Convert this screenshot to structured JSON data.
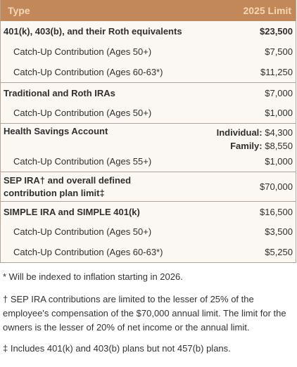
{
  "header": {
    "type_label": "Type",
    "limit_label": "2025 Limit"
  },
  "rows": {
    "r401k": {
      "label": "401(k), 403(b), and their Roth equivalents",
      "value": "$23,500"
    },
    "r401k_catchup50": {
      "label": "Catch-Up Contribution (Ages 50+)",
      "value": "$7,500"
    },
    "r401k_catchup60": {
      "label": "Catch-Up Contribution (Ages 60-63*)",
      "value": "$11,250"
    },
    "ira": {
      "label": "Traditional and Roth IRAs",
      "value": "$7,000"
    },
    "ira_catchup50": {
      "label": "Catch-Up Contribution (Ages 50+)",
      "value": "$1,000"
    },
    "hsa": {
      "label": "Health Savings Account",
      "individual_label": "Individual:",
      "individual_value": "$4,300",
      "family_label": "Family:",
      "family_value": "$8,550"
    },
    "hsa_catchup55": {
      "label": "Catch-Up Contribution (Ages 55+)",
      "value": "$1,000"
    },
    "sep": {
      "label_line1": "SEP IRA† and overall defined",
      "label_line2": "contribution plan limit‡",
      "value": "$70,000"
    },
    "simple": {
      "label": "SIMPLE IRA and SIMPLE 401(k)",
      "value": "$16,500"
    },
    "simple_catchup50": {
      "label": "Catch-Up Contribution (Ages 50+)",
      "value": "$3,500"
    },
    "simple_catchup60": {
      "label": "Catch-Up Contribution (Ages 60-63*)",
      "value": "$5,250"
    }
  },
  "notes": {
    "asterisk": "* Will be indexed to inflation starting in 2026.",
    "dagger": "† SEP IRA contributions are limited to the lesser of 25% of the employee's compensation of the $70,000 annual limit. The limit for the owners is the lesser of 20% of net income or the annual limit.",
    "double_dagger": "‡ Includes 401(k) and 403(b) plans but not 457(b) plans."
  },
  "colors": {
    "header_bg": "#c2885a",
    "header_text": "#f6d7b4",
    "border": "#b5a493"
  }
}
